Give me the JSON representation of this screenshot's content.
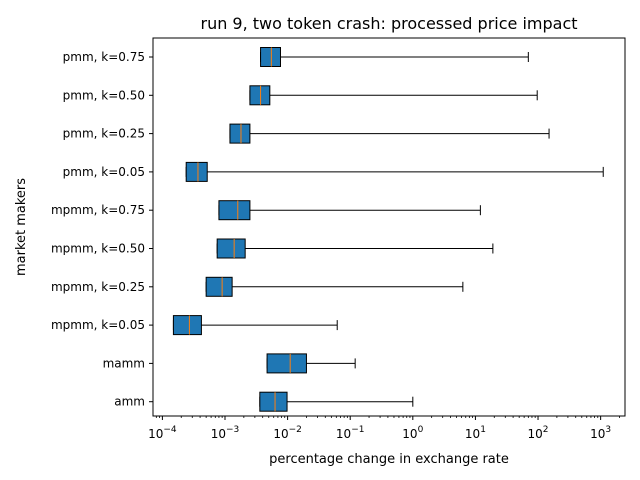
{
  "chart_data": {
    "type": "boxplot",
    "orientation": "horizontal",
    "title": "run 9, two token crash: processed price impact",
    "xlabel": "percentage change in exchange rate",
    "ylabel": "market makers",
    "xscale": "log",
    "xlim": [
      7.08e-05,
      2450
    ],
    "x_ticks": [
      {
        "value": 0.0001,
        "base": "10",
        "exp": "−4"
      },
      {
        "value": 0.001,
        "base": "10",
        "exp": "−3"
      },
      {
        "value": 0.01,
        "base": "10",
        "exp": "−2"
      },
      {
        "value": 0.1,
        "base": "10",
        "exp": "−1"
      },
      {
        "value": 1,
        "base": "10",
        "exp": "0"
      },
      {
        "value": 10,
        "base": "10",
        "exp": "1"
      },
      {
        "value": 100,
        "base": "10",
        "exp": "2"
      },
      {
        "value": 1000,
        "base": "10",
        "exp": "3"
      }
    ],
    "colors": {
      "box": "#1f77b4",
      "median": "#ff7f0e",
      "whisker": "#000000"
    },
    "series": [
      {
        "label": "pmm, k=0.75",
        "whislo": 0.0037,
        "q1": 0.0037,
        "median": 0.0055,
        "q3": 0.0077,
        "whishi": 70
      },
      {
        "label": "pmm, k=0.50",
        "whislo": 0.0025,
        "q1": 0.0025,
        "median": 0.0037,
        "q3": 0.0052,
        "whishi": 97
      },
      {
        "label": "pmm, k=0.25",
        "whislo": 0.0012,
        "q1": 0.0012,
        "median": 0.0018,
        "q3": 0.0025,
        "whishi": 150
      },
      {
        "label": "pmm, k=0.05",
        "whislo": 0.00024,
        "q1": 0.00024,
        "median": 0.00037,
        "q3": 0.00052,
        "whishi": 1100
      },
      {
        "label": "mpmm, k=0.75",
        "whislo": 0.0008,
        "q1": 0.0008,
        "median": 0.0016,
        "q3": 0.0025,
        "whishi": 12
      },
      {
        "label": "mpmm, k=0.50",
        "whislo": 0.00075,
        "q1": 0.00075,
        "median": 0.0014,
        "q3": 0.0021,
        "whishi": 19
      },
      {
        "label": "mpmm, k=0.25",
        "whislo": 0.0005,
        "q1": 0.0005,
        "median": 0.0009,
        "q3": 0.0013,
        "whishi": 6.3
      },
      {
        "label": "mpmm, k=0.05",
        "whislo": 0.00015,
        "q1": 0.00015,
        "median": 0.00027,
        "q3": 0.00042,
        "whishi": 0.062
      },
      {
        "label": "mamm",
        "whislo": 0.0047,
        "q1": 0.0047,
        "median": 0.011,
        "q3": 0.02,
        "whishi": 0.12
      },
      {
        "label": "amm",
        "whislo": 0.0036,
        "q1": 0.0036,
        "median": 0.0063,
        "q3": 0.0098,
        "whishi": 1.0
      }
    ]
  }
}
